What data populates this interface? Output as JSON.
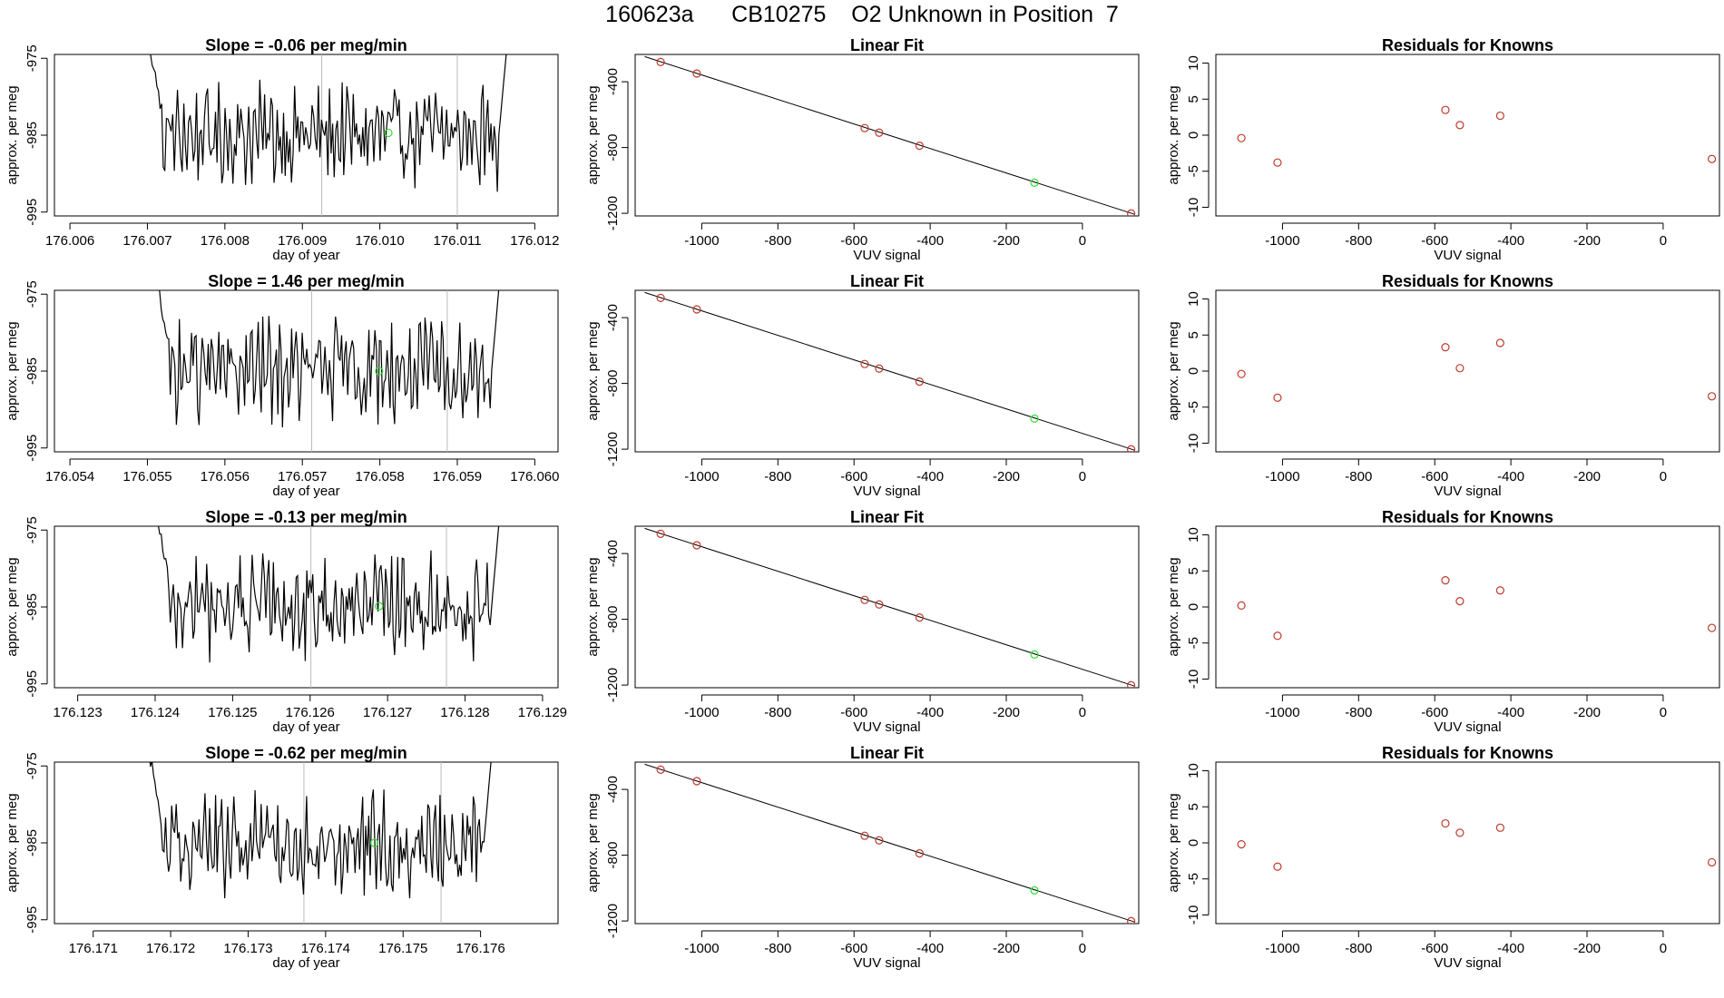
{
  "title": "160623a      CB10275    O2 Unknown in Position  7",
  "colors": {
    "line": "#000000",
    "known_point": "#c0392b",
    "unknown_point": "#33dd33",
    "vline": "#bbbbbb"
  },
  "chart_data": [
    {
      "panel": "slope-1",
      "type": "line",
      "title": "Slope =  -0.06  per meg/min",
      "xlabel": "day of year",
      "ylabel": "approx. per meg",
      "xlim": [
        176.0058,
        176.0123
      ],
      "ylim": [
        -995.5,
        -974.5
      ],
      "xticks": [
        "176.006",
        "176.007",
        "176.008",
        "176.009",
        "176.010",
        "176.011",
        "176.012"
      ],
      "yticks": [
        "-975",
        "-985",
        "-995"
      ],
      "vlines": [
        176.00925,
        176.011
      ],
      "unknown_point": {
        "x": 176.01011,
        "y": -984.7
      },
      "trace_start": 176.007,
      "trace_end": 176.0117
    },
    {
      "panel": "fit-1",
      "type": "scatter",
      "title": "Linear Fit",
      "xlabel": "VUV signal",
      "ylabel": "approx. per meg",
      "xlim": [
        -1175,
        148
      ],
      "ylim": [
        -1216,
        -234
      ],
      "xticks": [
        "-1000",
        "-800",
        "-600",
        "-400",
        "-200",
        "0"
      ],
      "yticks": [
        "-400",
        "-800",
        "-1200"
      ],
      "fit_line": [
        [
          -1150,
          -247
        ],
        [
          137,
          -1206
        ]
      ],
      "knowns": [
        [
          -1108,
          -280
        ],
        [
          -1013,
          -350
        ],
        [
          -572,
          -682
        ],
        [
          -534,
          -710
        ],
        [
          -428,
          -789
        ],
        [
          128,
          -1201
        ]
      ],
      "unknown": [
        [
          -126,
          -1014
        ]
      ]
    },
    {
      "panel": "resid-1",
      "type": "scatter",
      "title": "Residuals for Knowns",
      "xlabel": "VUV signal",
      "ylabel": "approx. per meg",
      "xlim": [
        -1175,
        148
      ],
      "ylim": [
        -11.2,
        11.2
      ],
      "xticks": [
        "-1000",
        "-800",
        "-600",
        "-400",
        "-200",
        "0"
      ],
      "yticks": [
        "10",
        "5",
        "0",
        "-5",
        "-10"
      ],
      "knowns": [
        [
          -1108,
          -0.4
        ],
        [
          -1013,
          -3.8
        ],
        [
          -572,
          3.5
        ],
        [
          -534,
          1.4
        ],
        [
          -428,
          2.7
        ],
        [
          128,
          -3.3
        ]
      ]
    },
    {
      "panel": "slope-2",
      "type": "line",
      "title": "Slope =  1.46  per meg/min",
      "xlabel": "day of year",
      "ylabel": "approx. per meg",
      "xlim": [
        176.0538,
        176.0603
      ],
      "ylim": [
        -995.5,
        -974.5
      ],
      "xticks": [
        "176.054",
        "176.055",
        "176.056",
        "176.057",
        "176.058",
        "176.059",
        "176.060"
      ],
      "yticks": [
        "-975",
        "-985",
        "-995"
      ],
      "vlines": [
        176.05712,
        176.05887
      ],
      "unknown_point": {
        "x": 176.05799,
        "y": -985.0
      },
      "trace_start": 176.0551,
      "trace_end": 176.0596
    },
    {
      "panel": "fit-2",
      "type": "scatter",
      "title": "Linear Fit",
      "xlabel": "VUV signal",
      "ylabel": "approx. per meg",
      "xlim": [
        -1175,
        148
      ],
      "ylim": [
        -1216,
        -234
      ],
      "xticks": [
        "-1000",
        "-800",
        "-600",
        "-400",
        "-200",
        "0"
      ],
      "yticks": [
        "-400",
        "-800",
        "-1200"
      ],
      "fit_line": [
        [
          -1150,
          -247
        ],
        [
          137,
          -1206
        ]
      ],
      "knowns": [
        [
          -1108,
          -280
        ],
        [
          -1013,
          -350
        ],
        [
          -572,
          -682
        ],
        [
          -534,
          -710
        ],
        [
          -428,
          -789
        ],
        [
          128,
          -1201
        ]
      ],
      "unknown": [
        [
          -126,
          -1014
        ]
      ]
    },
    {
      "panel": "resid-2",
      "type": "scatter",
      "title": "Residuals for Knowns",
      "xlabel": "VUV signal",
      "ylabel": "approx. per meg",
      "xlim": [
        -1175,
        148
      ],
      "ylim": [
        -11.2,
        11.2
      ],
      "xticks": [
        "-1000",
        "-800",
        "-600",
        "-400",
        "-200",
        "0"
      ],
      "yticks": [
        "10",
        "5",
        "0",
        "-5",
        "-10"
      ],
      "knowns": [
        [
          -1108,
          -0.4
        ],
        [
          -1013,
          -3.7
        ],
        [
          -572,
          3.3
        ],
        [
          -534,
          0.4
        ],
        [
          -428,
          3.9
        ],
        [
          128,
          -3.5
        ]
      ]
    },
    {
      "panel": "slope-3",
      "type": "line",
      "title": "Slope =  -0.13  per meg/min",
      "xlabel": "day of year",
      "ylabel": "approx. per meg",
      "xlim": [
        176.1227,
        176.1292
      ],
      "ylim": [
        -995.5,
        -974.5
      ],
      "xticks": [
        "176.123",
        "176.124",
        "176.125",
        "176.126",
        "176.127",
        "176.128",
        "176.129"
      ],
      "yticks": [
        "-975",
        "-985",
        "-995"
      ],
      "vlines": [
        176.12601,
        176.12776
      ],
      "unknown_point": {
        "x": 176.12689,
        "y": -984.9
      },
      "trace_start": 176.124,
      "trace_end": 176.1285
    },
    {
      "panel": "fit-3",
      "type": "scatter",
      "title": "Linear Fit",
      "xlabel": "VUV signal",
      "ylabel": "approx. per meg",
      "xlim": [
        -1175,
        148
      ],
      "ylim": [
        -1216,
        -234
      ],
      "xticks": [
        "-1000",
        "-800",
        "-600",
        "-400",
        "-200",
        "0"
      ],
      "yticks": [
        "-400",
        "-800",
        "-1200"
      ],
      "fit_line": [
        [
          -1150,
          -247
        ],
        [
          137,
          -1206
        ]
      ],
      "knowns": [
        [
          -1108,
          -280
        ],
        [
          -1013,
          -350
        ],
        [
          -572,
          -682
        ],
        [
          -534,
          -710
        ],
        [
          -428,
          -789
        ],
        [
          128,
          -1201
        ]
      ],
      "unknown": [
        [
          -126,
          -1014
        ]
      ]
    },
    {
      "panel": "resid-3",
      "type": "scatter",
      "title": "Residuals for Knowns",
      "xlabel": "VUV signal",
      "ylabel": "approx. per meg",
      "xlim": [
        -1175,
        148
      ],
      "ylim": [
        -11.2,
        11.2
      ],
      "xticks": [
        "-1000",
        "-800",
        "-600",
        "-400",
        "-200",
        "0"
      ],
      "yticks": [
        "10",
        "5",
        "0",
        "-5",
        "-10"
      ],
      "knowns": [
        [
          -1108,
          0.2
        ],
        [
          -1013,
          -4.0
        ],
        [
          -572,
          3.7
        ],
        [
          -534,
          0.8
        ],
        [
          -428,
          2.3
        ],
        [
          128,
          -2.9
        ]
      ]
    },
    {
      "panel": "slope-4",
      "type": "line",
      "title": "Slope =  -0.62  per meg/min",
      "xlabel": "day of year",
      "ylabel": "approx. per meg",
      "xlim": [
        176.1705,
        176.177
      ],
      "ylim": [
        -995.5,
        -974.5
      ],
      "xticks": [
        "176.171",
        "176.172",
        "176.173",
        "176.174",
        "176.175",
        "176.176"
      ],
      "yticks": [
        "-975",
        "-985",
        "-995"
      ],
      "vlines": [
        176.17372,
        176.17549
      ],
      "unknown_point": {
        "x": 176.17463,
        "y": -985.0
      },
      "trace_start": 176.1717,
      "trace_end": 176.1762
    },
    {
      "panel": "fit-4",
      "type": "scatter",
      "title": "Linear Fit",
      "xlabel": "VUV signal",
      "ylabel": "approx. per meg",
      "xlim": [
        -1175,
        148
      ],
      "ylim": [
        -1216,
        -234
      ],
      "xticks": [
        "-1000",
        "-800",
        "-600",
        "-400",
        "-200",
        "0"
      ],
      "yticks": [
        "-400",
        "-800",
        "-1200"
      ],
      "fit_line": [
        [
          -1150,
          -247
        ],
        [
          137,
          -1206
        ]
      ],
      "knowns": [
        [
          -1108,
          -280
        ],
        [
          -1013,
          -350
        ],
        [
          -572,
          -682
        ],
        [
          -534,
          -710
        ],
        [
          -428,
          -789
        ],
        [
          128,
          -1201
        ]
      ],
      "unknown": [
        [
          -126,
          -1014
        ]
      ]
    },
    {
      "panel": "resid-4",
      "type": "scatter",
      "title": "Residuals for Knowns",
      "xlabel": "VUV signal",
      "ylabel": "approx. per meg",
      "xlim": [
        -1175,
        148
      ],
      "ylim": [
        -11.2,
        11.2
      ],
      "xticks": [
        "-1000",
        "-800",
        "-600",
        "-400",
        "-200",
        "0"
      ],
      "yticks": [
        "10",
        "5",
        "0",
        "-5",
        "-10"
      ],
      "knowns": [
        [
          -1108,
          -0.2
        ],
        [
          -1013,
          -3.3
        ],
        [
          -572,
          2.7
        ],
        [
          -534,
          1.4
        ],
        [
          -428,
          2.1
        ],
        [
          128,
          -2.7
        ]
      ]
    }
  ]
}
